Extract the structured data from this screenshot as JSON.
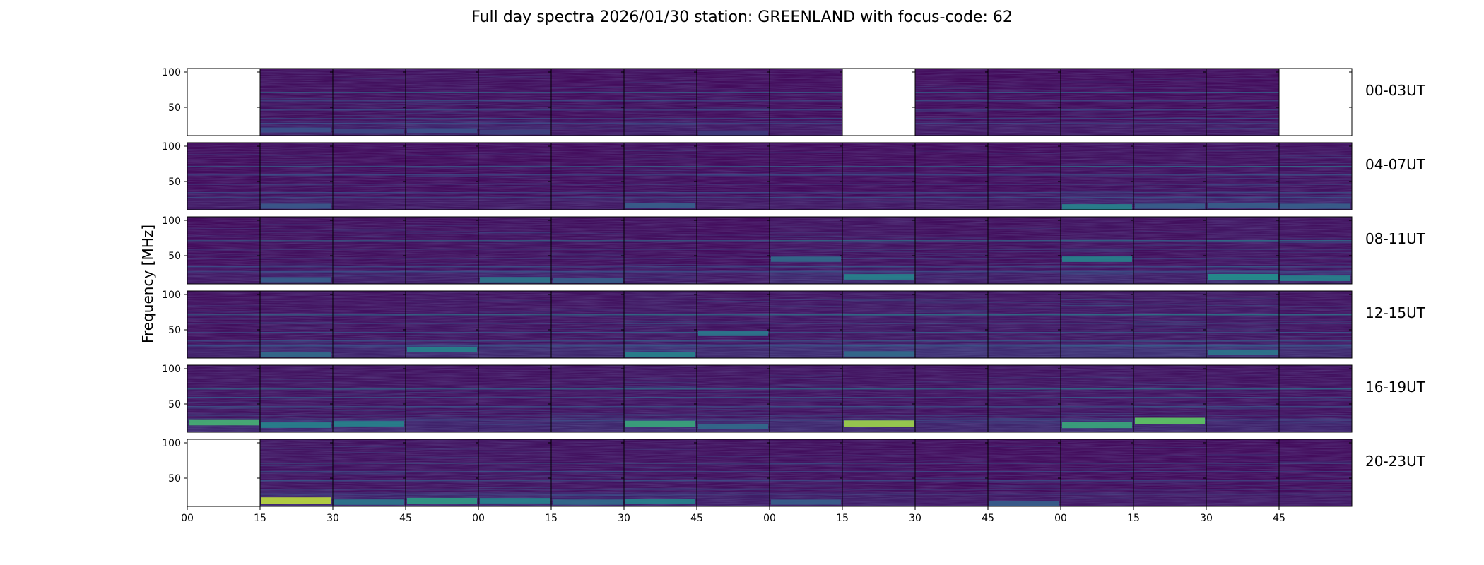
{
  "chart_data": {
    "type": "heatmap",
    "title": "Full day spectra 2026/01/30 station: GREENLAND with focus-code: 62",
    "ylabel": "Frequency [MHz]",
    "xlabel": "",
    "ylim": [
      10,
      105
    ],
    "y_ticks": [
      "100",
      "50"
    ],
    "y_tick_values": [
      100,
      50
    ],
    "x_ticks": [
      "00",
      "15",
      "30",
      "45",
      "00",
      "15",
      "30",
      "45",
      "00",
      "15",
      "30",
      "45",
      "00",
      "15",
      "30",
      "45"
    ],
    "panels_per_row": 16,
    "colormap": [
      "#440154",
      "#3b528b",
      "#21918c",
      "#5ec962",
      "#fde725"
    ],
    "rows": [
      {
        "label": "00-03UT",
        "missing": [
          0,
          9,
          15
        ],
        "activity": [
          0,
          0.12,
          0.12,
          0.14,
          0.12,
          0.1,
          0.12,
          0.1,
          0.1,
          0,
          0.1,
          0.1,
          0.1,
          0.1,
          0.1,
          0
        ],
        "features": [
          {
            "panel": 1,
            "freq": 18,
            "intensity": 0.25
          },
          {
            "panel": 2,
            "freq": 16,
            "intensity": 0.22
          },
          {
            "panel": 3,
            "freq": 17,
            "intensity": 0.25
          },
          {
            "panel": 4,
            "freq": 15,
            "intensity": 0.2
          },
          {
            "panel": 7,
            "freq": 14,
            "intensity": 0.18
          }
        ]
      },
      {
        "label": "04-07UT",
        "missing": [],
        "activity": [
          0.1,
          0.12,
          0.1,
          0.1,
          0.1,
          0.1,
          0.12,
          0.1,
          0.1,
          0.1,
          0.1,
          0.1,
          0.14,
          0.14,
          0.14,
          0.14
        ],
        "features": [
          {
            "panel": 1,
            "freq": 15,
            "intensity": 0.28
          },
          {
            "panel": 6,
            "freq": 16,
            "intensity": 0.3
          },
          {
            "panel": 12,
            "freq": 14,
            "intensity": 0.45
          },
          {
            "panel": 13,
            "freq": 15,
            "intensity": 0.3
          },
          {
            "panel": 14,
            "freq": 16,
            "intensity": 0.3
          },
          {
            "panel": 15,
            "freq": 15,
            "intensity": 0.3
          }
        ]
      },
      {
        "label": "08-11UT",
        "missing": [],
        "activity": [
          0.1,
          0.12,
          0.12,
          0.12,
          0.14,
          0.12,
          0.12,
          0.1,
          0.16,
          0.16,
          0.12,
          0.12,
          0.16,
          0.12,
          0.18,
          0.14
        ],
        "features": [
          {
            "panel": 1,
            "freq": 16,
            "intensity": 0.3
          },
          {
            "panel": 4,
            "freq": 16,
            "intensity": 0.4
          },
          {
            "panel": 5,
            "freq": 15,
            "intensity": 0.3
          },
          {
            "panel": 8,
            "freq": 45,
            "intensity": 0.35
          },
          {
            "panel": 9,
            "freq": 20,
            "intensity": 0.45
          },
          {
            "panel": 12,
            "freq": 45,
            "intensity": 0.45
          },
          {
            "panel": 14,
            "freq": 20,
            "intensity": 0.5
          },
          {
            "panel": 15,
            "freq": 18,
            "intensity": 0.45
          }
        ]
      },
      {
        "label": "12-15UT",
        "missing": [],
        "activity": [
          0.12,
          0.16,
          0.14,
          0.18,
          0.16,
          0.16,
          0.2,
          0.16,
          0.18,
          0.2,
          0.2,
          0.18,
          0.2,
          0.2,
          0.2,
          0.16
        ],
        "features": [
          {
            "panel": 1,
            "freq": 15,
            "intensity": 0.35
          },
          {
            "panel": 3,
            "freq": 22,
            "intensity": 0.45
          },
          {
            "panel": 6,
            "freq": 15,
            "intensity": 0.45
          },
          {
            "panel": 7,
            "freq": 45,
            "intensity": 0.4
          },
          {
            "panel": 9,
            "freq": 16,
            "intensity": 0.35
          },
          {
            "panel": 14,
            "freq": 18,
            "intensity": 0.4
          }
        ]
      },
      {
        "label": "16-19UT",
        "missing": [],
        "activity": [
          0.16,
          0.16,
          0.16,
          0.14,
          0.14,
          0.16,
          0.18,
          0.16,
          0.16,
          0.16,
          0.14,
          0.16,
          0.18,
          0.16,
          0.14,
          0.14
        ],
        "features": [
          {
            "panel": 0,
            "freq": 24,
            "intensity": 0.65
          },
          {
            "panel": 1,
            "freq": 20,
            "intensity": 0.45
          },
          {
            "panel": 2,
            "freq": 22,
            "intensity": 0.45
          },
          {
            "panel": 6,
            "freq": 22,
            "intensity": 0.6
          },
          {
            "panel": 7,
            "freq": 18,
            "intensity": 0.35
          },
          {
            "panel": 9,
            "freq": 22,
            "intensity": 0.85
          },
          {
            "panel": 12,
            "freq": 20,
            "intensity": 0.6
          },
          {
            "panel": 13,
            "freq": 26,
            "intensity": 0.75
          }
        ]
      },
      {
        "label": "20-23UT",
        "missing": [
          0
        ],
        "activity": [
          0,
          0.16,
          0.14,
          0.16,
          0.16,
          0.14,
          0.14,
          0.12,
          0.12,
          0.12,
          0.1,
          0.1,
          0.1,
          0.1,
          0.1,
          0.1
        ],
        "features": [
          {
            "panel": 1,
            "freq": 18,
            "intensity": 0.9
          },
          {
            "panel": 2,
            "freq": 16,
            "intensity": 0.4
          },
          {
            "panel": 3,
            "freq": 18,
            "intensity": 0.55
          },
          {
            "panel": 4,
            "freq": 18,
            "intensity": 0.45
          },
          {
            "panel": 5,
            "freq": 16,
            "intensity": 0.35
          },
          {
            "panel": 6,
            "freq": 17,
            "intensity": 0.45
          },
          {
            "panel": 8,
            "freq": 16,
            "intensity": 0.3
          },
          {
            "panel": 11,
            "freq": 14,
            "intensity": 0.3
          }
        ]
      }
    ]
  }
}
